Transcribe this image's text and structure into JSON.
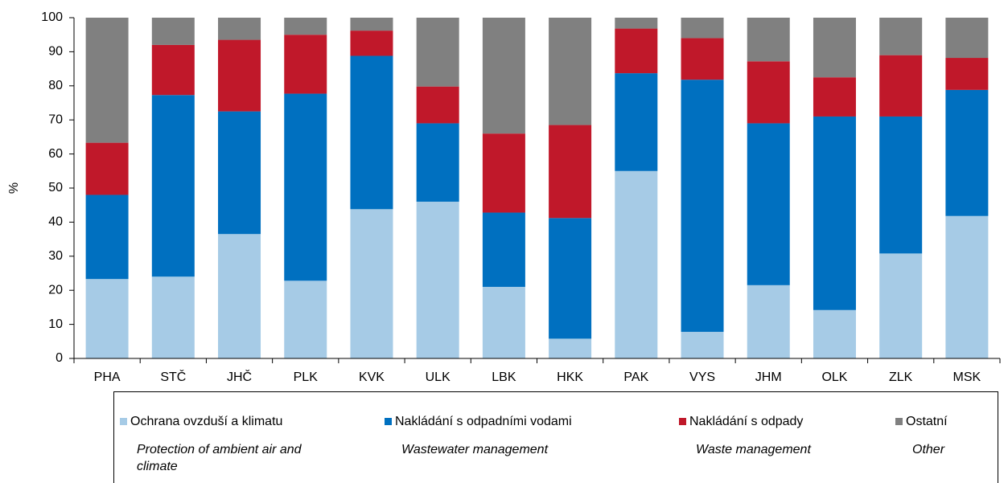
{
  "chart_data": {
    "type": "stacked_bar",
    "y_label": "%",
    "categories": [
      "PHA",
      "STČ",
      "JHČ",
      "PLK",
      "KVK",
      "ULK",
      "LBK",
      "HKK",
      "PAK",
      "VYS",
      "JHM",
      "OLK",
      "ZLK",
      "MSK"
    ],
    "series": [
      {
        "name": "Ochrana ovzduší a klimatu",
        "subtitle": "Protection of ambient air and climate",
        "color": "#a6cbe6",
        "values": [
          23.3,
          24,
          36.5,
          22.8,
          43.8,
          46,
          21,
          5.8,
          55,
          7.8,
          21.5,
          14.2,
          30.8,
          41.8
        ]
      },
      {
        "name": "Nakládání s odpadními vodami",
        "subtitle": "Wastewater management",
        "color": "#0070c0",
        "values": [
          24.7,
          53.3,
          36,
          54.9,
          45,
          23,
          21.8,
          35.4,
          28.7,
          74,
          47.5,
          56.8,
          40.2,
          37
        ]
      },
      {
        "name": "Nakládání s odpady",
        "subtitle": "Waste management",
        "color": "#c0182a",
        "values": [
          15.3,
          14.7,
          21,
          17.3,
          7.4,
          10.8,
          23.2,
          27.3,
          13.1,
          12.2,
          18.2,
          11.5,
          18,
          9.4
        ]
      },
      {
        "name": "Ostatní",
        "subtitle": "Other",
        "color": "#808080",
        "values": [
          36.7,
          8,
          6.5,
          5,
          3.8,
          20.2,
          34,
          31.5,
          3.2,
          6,
          12.8,
          17.5,
          11,
          11.8
        ]
      }
    ],
    "ylim": [
      0,
      100
    ],
    "yticks": [
      0,
      10,
      20,
      30,
      40,
      50,
      60,
      70,
      80,
      90,
      100
    ],
    "grid": false
  }
}
